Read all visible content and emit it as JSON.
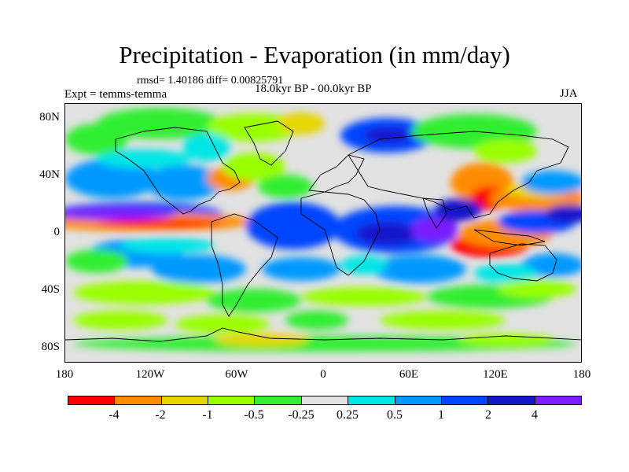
{
  "title": "Precipitation - Evaporation (in mm/day)",
  "stats": "rmsd= 1.40186 diff= 0.00825791",
  "experiment": "Expt = temms-temma",
  "period": "18.0kyr BP - 00.0kyr BP",
  "season": "JJA",
  "y_ticks": [
    "80N",
    "40N",
    "0",
    "40S",
    "80S"
  ],
  "x_ticks": [
    "180",
    "120W",
    "60W",
    "0",
    "60E",
    "120E",
    "180"
  ],
  "colorbar": {
    "colors": [
      "#ff0000",
      "#ff8c00",
      "#e6d600",
      "#99ff00",
      "#33ee33",
      "#e2e2e2",
      "#00e6e6",
      "#0099ff",
      "#0044ff",
      "#1515cc",
      "#7a1fff"
    ],
    "labels": [
      "-4",
      "-2",
      "-1",
      "-0.5",
      "-0.25",
      "0.25",
      "0.5",
      "1",
      "2",
      "4"
    ]
  }
}
